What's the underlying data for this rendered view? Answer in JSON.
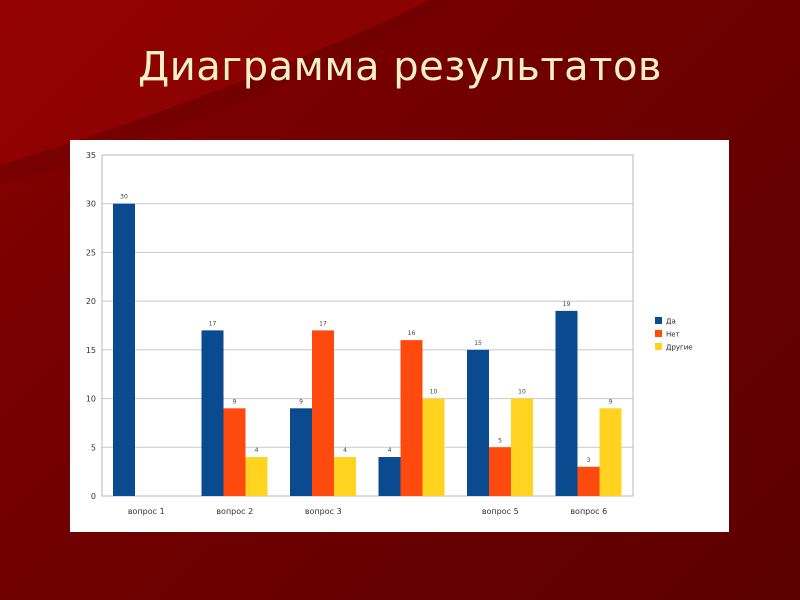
{
  "slide": {
    "title": "Диаграмма результатов"
  },
  "colors": {
    "background": "#7a0000",
    "title": "#f6f0c8",
    "series_da": "#0a4a8e",
    "series_net": "#ff4a0f",
    "series_drugie": "#ffd320"
  },
  "chart_data": {
    "type": "bar",
    "categories": [
      "вопрос 1",
      "вопрос 2",
      "вопрос 3",
      "",
      "вопрос 5",
      "вопрос 6"
    ],
    "series": [
      {
        "name": "Да",
        "color": "#0a4a8e",
        "values": [
          30,
          17,
          9,
          4,
          15,
          19
        ]
      },
      {
        "name": "Нет",
        "color": "#ff4a0f",
        "values": [
          null,
          9,
          17,
          16,
          5,
          3
        ]
      },
      {
        "name": "Другие",
        "color": "#ffd320",
        "values": [
          null,
          4,
          4,
          10,
          10,
          9
        ]
      }
    ],
    "ylim": [
      0,
      35
    ],
    "yticks": [
      0,
      5,
      10,
      15,
      20,
      25,
      30,
      35
    ],
    "grid": true,
    "legend": "right",
    "data_labels": true,
    "title": "",
    "xlabel": "",
    "ylabel": ""
  }
}
